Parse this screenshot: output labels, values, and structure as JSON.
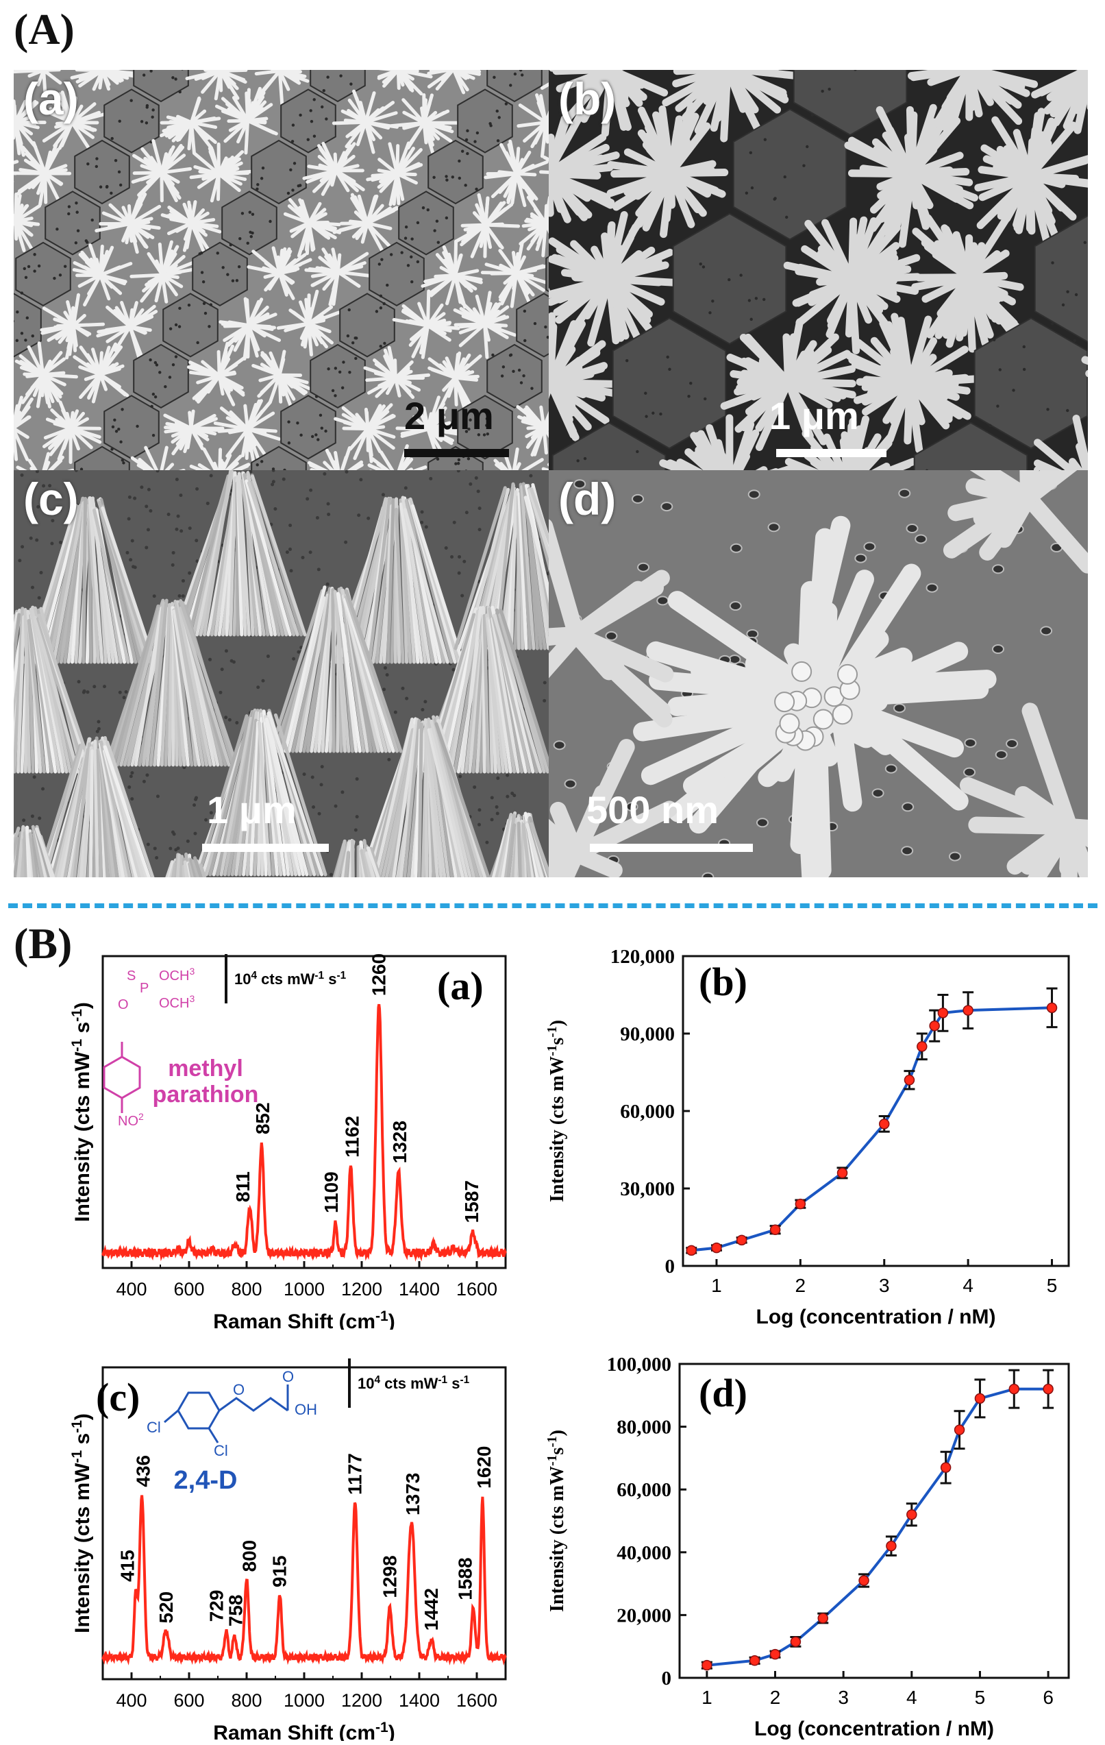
{
  "labels": {
    "section_a": "(A)",
    "section_b": "(B)"
  },
  "sem_panels": [
    {
      "id": "a",
      "letter": "(a)",
      "scale": "2 μm",
      "bar_color": "#111111"
    },
    {
      "id": "b",
      "letter": "(b)",
      "scale": "1 μm",
      "bar_color": "#ffffff"
    },
    {
      "id": "c",
      "letter": "(c)",
      "scale": "1 μm",
      "bar_color": "#ffffff"
    },
    {
      "id": "d",
      "letter": "(d)",
      "scale": "500 nm",
      "bar_color": "#ffffff"
    }
  ],
  "chart_data": [
    {
      "id": "Ba",
      "type": "line",
      "panel_label": "(a)",
      "xlabel": "Raman Shift (cm-1)",
      "ylabel": "Intensity (cts mW-1 s-1)",
      "xlim": [
        300,
        1700
      ],
      "xticks": [
        400,
        600,
        800,
        1000,
        1200,
        1400,
        1600
      ],
      "scale_note": "10^4 cts mW-1 s-1",
      "molecule": {
        "name_line1": "methyl",
        "name_line2": "parathion",
        "groups": [
          "S",
          "P",
          "OCH3",
          "OCH3",
          "O",
          "NO2"
        ]
      },
      "color": "#ff2a1a",
      "peaks": [
        {
          "x": 811,
          "label": "811"
        },
        {
          "x": 852,
          "label": "852"
        },
        {
          "x": 1109,
          "label": "1109"
        },
        {
          "x": 1162,
          "label": "1162"
        },
        {
          "x": 1260,
          "label": "1260"
        },
        {
          "x": 1328,
          "label": "1328"
        },
        {
          "x": 1587,
          "label": "1587"
        }
      ]
    },
    {
      "id": "Bb",
      "type": "line",
      "panel_label": "(b)",
      "xlabel": "Log (concentration / nM)",
      "ylabel": "Intensity (cts mW-1s-1)",
      "xlim": [
        0.6,
        5.2
      ],
      "ylim": [
        0,
        120000
      ],
      "xticks": [
        1,
        2,
        3,
        4,
        5
      ],
      "yticks": [
        "0",
        "30,000",
        "60,000",
        "90,000",
        "120,000"
      ],
      "line_color": "#1a56c2",
      "point_color": "#ff2a1a",
      "x": [
        0.7,
        1.0,
        1.3,
        1.7,
        2.0,
        2.5,
        3.0,
        3.3,
        3.45,
        3.6,
        3.7,
        4.0,
        5.0
      ],
      "y": [
        6000,
        7000,
        10000,
        14000,
        24000,
        36000,
        55000,
        72000,
        85000,
        93000,
        98000,
        99000,
        100000
      ],
      "err": [
        1000,
        1000,
        1000,
        1500,
        1500,
        2000,
        3000,
        3500,
        5000,
        6000,
        7000,
        7000,
        7500
      ]
    },
    {
      "id": "Bc",
      "type": "line",
      "panel_label": "(c)",
      "xlabel": "Raman Shift (cm-1)",
      "ylabel": "Intensity (cts mW-1 s-1)",
      "xlim": [
        300,
        1700
      ],
      "xticks": [
        400,
        600,
        800,
        1000,
        1200,
        1400,
        1600
      ],
      "scale_note": "10^4 cts mW-1 s-1",
      "molecule": {
        "name": "2,4-D",
        "groups": [
          "O",
          "O",
          "OH",
          "Cl",
          "Cl"
        ]
      },
      "color": "#ff2a1a",
      "peaks": [
        {
          "x": 415,
          "label": "415"
        },
        {
          "x": 436,
          "label": "436"
        },
        {
          "x": 520,
          "label": "520"
        },
        {
          "x": 729,
          "label": "729"
        },
        {
          "x": 758,
          "label": "758"
        },
        {
          "x": 800,
          "label": "800"
        },
        {
          "x": 915,
          "label": "915"
        },
        {
          "x": 1177,
          "label": "1177"
        },
        {
          "x": 1298,
          "label": "1298"
        },
        {
          "x": 1373,
          "label": "1373"
        },
        {
          "x": 1442,
          "label": "1442"
        },
        {
          "x": 1588,
          "label": "1588"
        },
        {
          "x": 1620,
          "label": "1620"
        }
      ]
    },
    {
      "id": "Bd",
      "type": "line",
      "panel_label": "(d)",
      "xlabel": "Log (concentration / nM)",
      "ylabel": "Intensity (cts mW-1s-1)",
      "xlim": [
        0.6,
        6.3
      ],
      "ylim": [
        0,
        100000
      ],
      "xticks": [
        1,
        2,
        3,
        4,
        5,
        6
      ],
      "yticks": [
        "0",
        "20,000",
        "40,000",
        "60,000",
        "80,000",
        "100,000"
      ],
      "line_color": "#1a56c2",
      "point_color": "#ff2a1a",
      "x": [
        1.0,
        1.7,
        2.0,
        2.3,
        2.7,
        3.3,
        3.7,
        4.0,
        4.5,
        4.7,
        5.0,
        5.5,
        6.0
      ],
      "y": [
        4000,
        5500,
        7500,
        11500,
        19000,
        31000,
        42000,
        52000,
        67000,
        79000,
        89000,
        92000,
        92000
      ],
      "err": [
        1000,
        1000,
        1000,
        1500,
        1500,
        2000,
        3000,
        3500,
        5000,
        6000,
        6000,
        6000,
        6000
      ]
    }
  ]
}
